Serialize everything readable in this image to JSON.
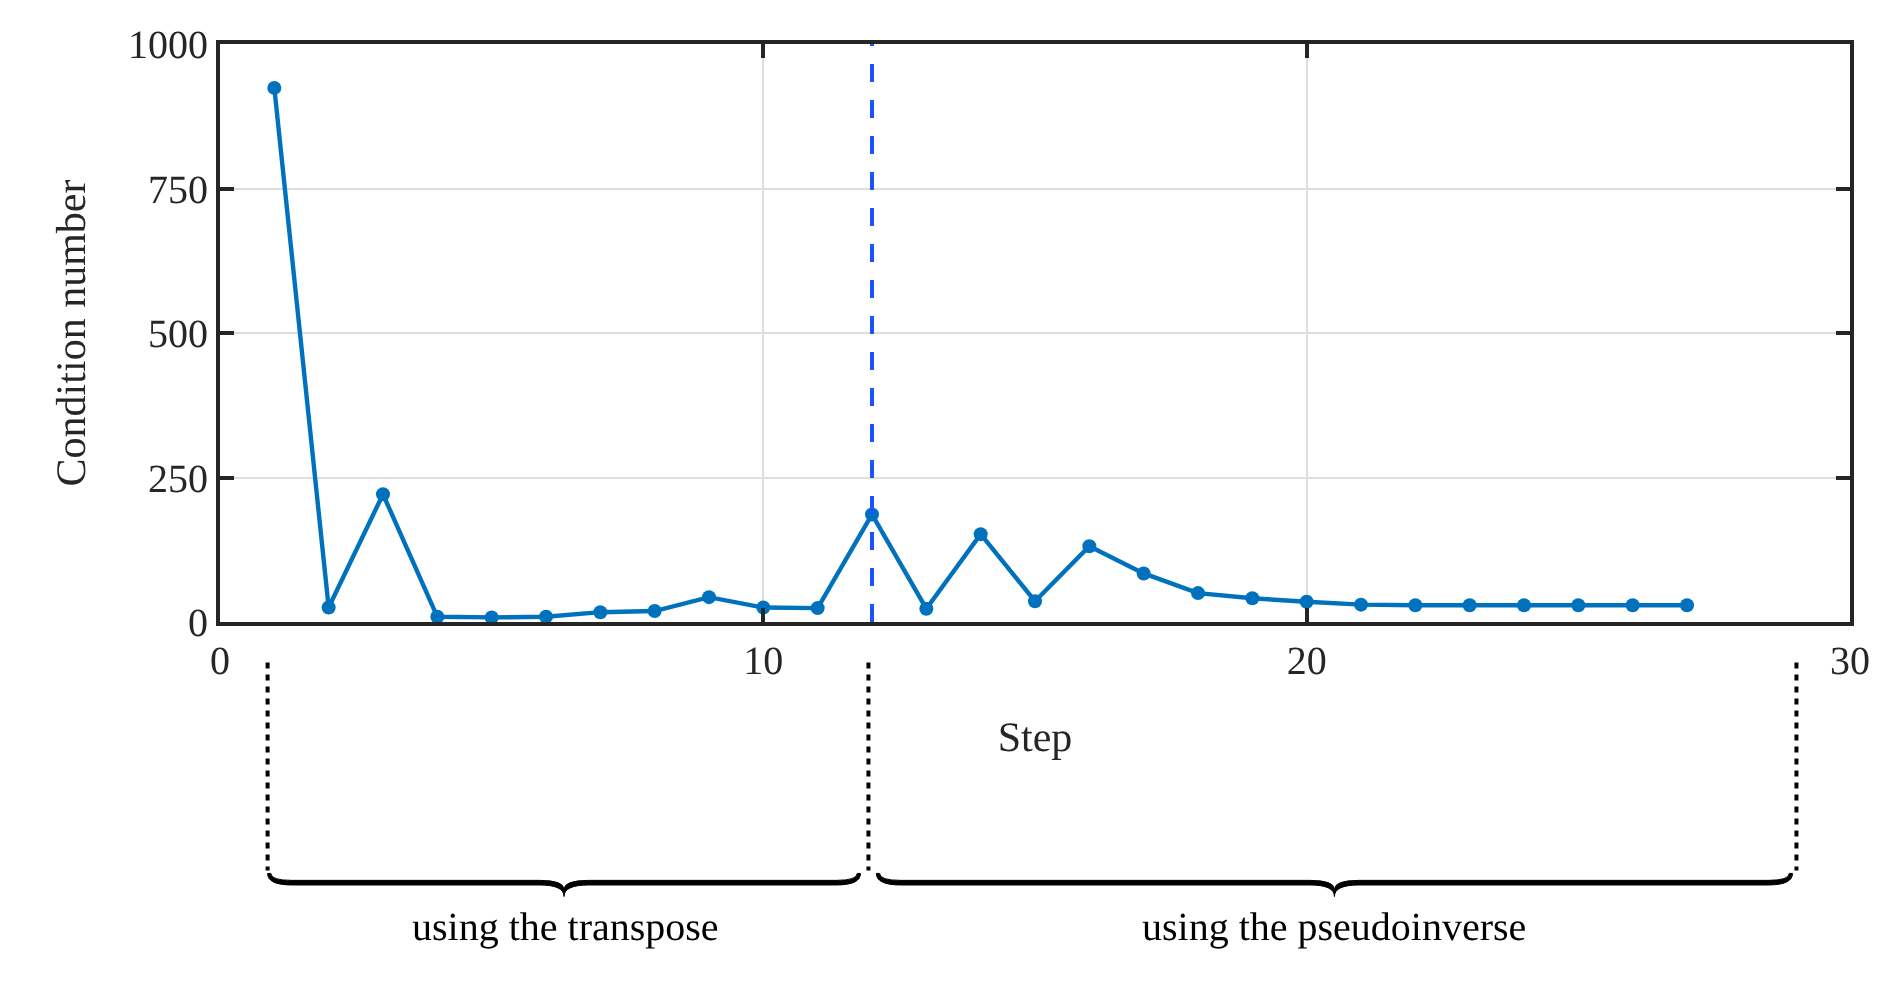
{
  "chart_data": {
    "type": "line",
    "xlabel": "Step",
    "ylabel": "Condition number",
    "x": [
      1,
      2,
      3,
      4,
      5,
      6,
      7,
      8,
      9,
      10,
      11,
      12,
      13,
      14,
      15,
      16,
      17,
      18,
      19,
      20,
      21,
      22,
      23,
      24,
      25,
      26,
      27
    ],
    "series": [
      {
        "color": "#0072bd",
        "values": [
          924,
          25,
          221,
          9,
          8,
          9,
          17,
          19,
          43,
          25,
          24,
          186,
          23,
          152,
          36,
          131,
          84,
          50,
          41,
          35,
          30,
          29,
          29,
          29,
          29,
          29,
          29
        ]
      }
    ],
    "xlim": [
      0,
      30
    ],
    "xticks": [
      0,
      10,
      20,
      30
    ],
    "ylim": [
      0,
      1000
    ],
    "yticks": [
      0,
      250,
      500,
      750,
      1000
    ],
    "grid": true,
    "marker": "circle",
    "line_style": "solid",
    "ref_lines": [
      {
        "axis": "x",
        "value": 12,
        "color": "#1a53ff",
        "line_style": "dashed"
      }
    ],
    "annotations": [
      "using the transpose",
      "using the pseudoinverse"
    ]
  }
}
